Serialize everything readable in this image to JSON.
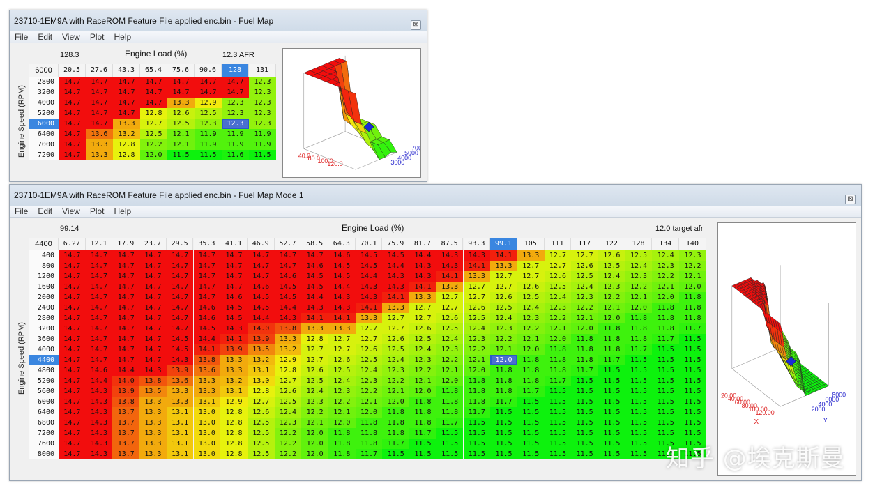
{
  "menu": [
    "File",
    "Edit",
    "View",
    "Plot",
    "Help"
  ],
  "win1": {
    "title": "23710-1EM9A with RaceROM Feature File applied enc.bin - Fuel Map",
    "close": "⊠",
    "load_readout": "128.3",
    "x_axis_title": "Engine Load (%)",
    "afr_readout": "12.3 AFR",
    "corner": "6000",
    "y_axis_title": "Engine Speed (RPM)",
    "cols": [
      "20.5",
      "27.6",
      "43.3",
      "65.4",
      "75.6",
      "90.6",
      "128",
      "131"
    ],
    "rows": [
      "2800",
      "3200",
      "4000",
      "5200",
      "6000",
      "6400",
      "7000",
      "7200"
    ],
    "sel_col": 6,
    "sel_row": 4,
    "values": [
      [
        "14.7",
        "14.7",
        "14.7",
        "14.7",
        "14.7",
        "14.7",
        "14.7",
        "12.3"
      ],
      [
        "14.7",
        "14.7",
        "14.7",
        "14.7",
        "14.7",
        "14.7",
        "14.7",
        "12.3"
      ],
      [
        "14.7",
        "14.7",
        "14.7",
        "14.7",
        "13.3",
        "12.9",
        "12.3",
        "12.3"
      ],
      [
        "14.7",
        "14.7",
        "14.7",
        "12.8",
        "12.6",
        "12.5",
        "12.3",
        "12.3"
      ],
      [
        "14.7",
        "14.7",
        "13.3",
        "12.7",
        "12.5",
        "12.3",
        "12.3",
        "12.3"
      ],
      [
        "14.7",
        "13.6",
        "13.2",
        "12.5",
        "12.1",
        "11.9",
        "11.9",
        "11.9"
      ],
      [
        "14.7",
        "13.3",
        "12.8",
        "12.2",
        "12.1",
        "11.9",
        "11.9",
        "11.9"
      ],
      [
        "14.7",
        "13.3",
        "12.8",
        "12.0",
        "11.5",
        "11.5",
        "11.6",
        "11.5"
      ]
    ],
    "plot": {
      "x_ticks": [
        "40.0",
        "80.0",
        "100.0",
        "120.0"
      ],
      "y_ticks": [
        "3000",
        "4000",
        "5000",
        "7000"
      ]
    }
  },
  "win2": {
    "title": "23710-1EM9A with RaceROM Feature File applied enc.bin - Fuel Map Mode 1",
    "close": "⊠",
    "load_readout": "99.14",
    "x_axis_title": "Engine Load (%)",
    "afr_readout": "12.0 target afr",
    "corner": "4400",
    "y_axis_title": "Engine Speed (RPM)",
    "cols": [
      "6.27",
      "12.1",
      "17.9",
      "23.7",
      "29.5",
      "35.3",
      "41.1",
      "46.9",
      "52.7",
      "58.5",
      "64.3",
      "70.1",
      "75.9",
      "81.7",
      "87.5",
      "93.3",
      "99.1",
      "105",
      "111",
      "117",
      "122",
      "128",
      "134",
      "140"
    ],
    "rows": [
      "400",
      "800",
      "1200",
      "1600",
      "2000",
      "2400",
      "2800",
      "3200",
      "3600",
      "4000",
      "4400",
      "4800",
      "5200",
      "5600",
      "6000",
      "6400",
      "6800",
      "7200",
      "7600",
      "8000"
    ],
    "sel_col": 16,
    "sel_row": 10,
    "values": [
      [
        "14.7",
        "14.7",
        "14.7",
        "14.7",
        "14.7",
        "14.7",
        "14.7",
        "14.7",
        "14.7",
        "14.7",
        "14.6",
        "14.5",
        "14.5",
        "14.4",
        "14.3",
        "14.3",
        "14.1",
        "13.3",
        "12.7",
        "12.7",
        "12.6",
        "12.5",
        "12.4",
        "12.3"
      ],
      [
        "14.7",
        "14.7",
        "14.7",
        "14.7",
        "14.7",
        "14.7",
        "14.7",
        "14.7",
        "14.7",
        "14.6",
        "14.5",
        "14.5",
        "14.4",
        "14.3",
        "14.3",
        "14.1",
        "13.3",
        "12.7",
        "12.7",
        "12.6",
        "12.5",
        "12.4",
        "12.3",
        "12.2"
      ],
      [
        "14.7",
        "14.7",
        "14.7",
        "14.7",
        "14.7",
        "14.7",
        "14.7",
        "14.7",
        "14.6",
        "14.5",
        "14.5",
        "14.4",
        "14.3",
        "14.3",
        "14.1",
        "13.3",
        "12.7",
        "12.7",
        "12.6",
        "12.5",
        "12.4",
        "12.3",
        "12.2",
        "12.1"
      ],
      [
        "14.7",
        "14.7",
        "14.7",
        "14.7",
        "14.7",
        "14.7",
        "14.7",
        "14.6",
        "14.5",
        "14.5",
        "14.4",
        "14.3",
        "14.3",
        "14.1",
        "13.3",
        "12.7",
        "12.7",
        "12.6",
        "12.5",
        "12.4",
        "12.3",
        "12.2",
        "12.1",
        "12.0"
      ],
      [
        "14.7",
        "14.7",
        "14.7",
        "14.7",
        "14.7",
        "14.7",
        "14.6",
        "14.5",
        "14.5",
        "14.4",
        "14.3",
        "14.3",
        "14.1",
        "13.3",
        "12.7",
        "12.7",
        "12.6",
        "12.5",
        "12.4",
        "12.3",
        "12.2",
        "12.1",
        "12.0",
        "11.8"
      ],
      [
        "14.7",
        "14.7",
        "14.7",
        "14.7",
        "14.7",
        "14.6",
        "14.5",
        "14.5",
        "14.4",
        "14.3",
        "14.3",
        "14.1",
        "13.3",
        "12.7",
        "12.7",
        "12.6",
        "12.5",
        "12.4",
        "12.3",
        "12.2",
        "12.1",
        "12.0",
        "11.8",
        "11.8"
      ],
      [
        "14.7",
        "14.7",
        "14.7",
        "14.7",
        "14.7",
        "14.6",
        "14.5",
        "14.4",
        "14.3",
        "14.1",
        "14.1",
        "13.3",
        "12.7",
        "12.7",
        "12.6",
        "12.5",
        "12.4",
        "12.3",
        "12.2",
        "12.1",
        "12.0",
        "11.8",
        "11.8",
        "11.8"
      ],
      [
        "14.7",
        "14.7",
        "14.7",
        "14.7",
        "14.7",
        "14.5",
        "14.3",
        "14.0",
        "13.8",
        "13.3",
        "13.3",
        "12.7",
        "12.7",
        "12.6",
        "12.5",
        "12.4",
        "12.3",
        "12.2",
        "12.1",
        "12.0",
        "11.8",
        "11.8",
        "11.8",
        "11.7"
      ],
      [
        "14.7",
        "14.7",
        "14.7",
        "14.7",
        "14.5",
        "14.4",
        "14.1",
        "13.9",
        "13.3",
        "12.8",
        "12.7",
        "12.7",
        "12.6",
        "12.5",
        "12.4",
        "12.3",
        "12.2",
        "12.1",
        "12.0",
        "11.8",
        "11.8",
        "11.8",
        "11.7",
        "11.5"
      ],
      [
        "14.7",
        "14.7",
        "14.7",
        "14.7",
        "14.5",
        "14.1",
        "13.9",
        "13.5",
        "13.2",
        "12.7",
        "12.7",
        "12.6",
        "12.5",
        "12.4",
        "12.3",
        "12.2",
        "12.1",
        "12.0",
        "11.8",
        "11.8",
        "11.8",
        "11.7",
        "11.5",
        "11.5"
      ],
      [
        "14.7",
        "14.7",
        "14.7",
        "14.7",
        "14.3",
        "13.8",
        "13.3",
        "13.2",
        "12.9",
        "12.7",
        "12.6",
        "12.5",
        "12.4",
        "12.3",
        "12.2",
        "12.1",
        "12.0",
        "11.8",
        "11.8",
        "11.8",
        "11.7",
        "11.5",
        "11.5",
        "11.5"
      ],
      [
        "14.7",
        "14.6",
        "14.4",
        "14.3",
        "13.9",
        "13.6",
        "13.3",
        "13.1",
        "12.8",
        "12.6",
        "12.5",
        "12.4",
        "12.3",
        "12.2",
        "12.1",
        "12.0",
        "11.8",
        "11.8",
        "11.8",
        "11.7",
        "11.5",
        "11.5",
        "11.5",
        "11.5"
      ],
      [
        "14.7",
        "14.4",
        "14.0",
        "13.8",
        "13.6",
        "13.3",
        "13.2",
        "13.0",
        "12.7",
        "12.5",
        "12.4",
        "12.3",
        "12.2",
        "12.1",
        "12.0",
        "11.8",
        "11.8",
        "11.8",
        "11.7",
        "11.5",
        "11.5",
        "11.5",
        "11.5",
        "11.5"
      ],
      [
        "14.7",
        "14.3",
        "13.9",
        "13.5",
        "13.3",
        "13.3",
        "13.1",
        "12.8",
        "12.6",
        "12.4",
        "12.3",
        "12.2",
        "12.1",
        "12.0",
        "11.8",
        "11.8",
        "11.8",
        "11.7",
        "11.5",
        "11.5",
        "11.5",
        "11.5",
        "11.5",
        "11.5"
      ],
      [
        "14.7",
        "14.3",
        "13.8",
        "13.3",
        "13.3",
        "13.1",
        "12.9",
        "12.7",
        "12.5",
        "12.3",
        "12.2",
        "12.1",
        "12.0",
        "11.8",
        "11.8",
        "11.8",
        "11.7",
        "11.5",
        "11.5",
        "11.5",
        "11.5",
        "11.5",
        "11.5",
        "11.5"
      ],
      [
        "14.7",
        "14.3",
        "13.7",
        "13.3",
        "13.1",
        "13.0",
        "12.8",
        "12.6",
        "12.4",
        "12.2",
        "12.1",
        "12.0",
        "11.8",
        "11.8",
        "11.8",
        "11.7",
        "11.5",
        "11.5",
        "11.5",
        "11.5",
        "11.5",
        "11.5",
        "11.5",
        "11.5"
      ],
      [
        "14.7",
        "14.3",
        "13.7",
        "13.3",
        "13.1",
        "13.0",
        "12.8",
        "12.5",
        "12.3",
        "12.1",
        "12.0",
        "11.8",
        "11.8",
        "11.8",
        "11.7",
        "11.5",
        "11.5",
        "11.5",
        "11.5",
        "11.5",
        "11.5",
        "11.5",
        "11.5",
        "11.5"
      ],
      [
        "14.7",
        "14.3",
        "13.7",
        "13.3",
        "13.1",
        "13.0",
        "12.8",
        "12.5",
        "12.2",
        "12.0",
        "11.8",
        "11.8",
        "11.8",
        "11.7",
        "11.5",
        "11.5",
        "11.5",
        "11.5",
        "11.5",
        "11.5",
        "11.5",
        "11.5",
        "11.5",
        "11.5"
      ],
      [
        "14.7",
        "14.3",
        "13.7",
        "13.3",
        "13.1",
        "13.0",
        "12.8",
        "12.5",
        "12.2",
        "12.0",
        "11.8",
        "11.8",
        "11.7",
        "11.5",
        "11.5",
        "11.5",
        "11.5",
        "11.5",
        "11.5",
        "11.5",
        "11.5",
        "11.5",
        "11.5",
        "11.5"
      ],
      [
        "14.7",
        "14.3",
        "13.7",
        "13.3",
        "13.1",
        "13.0",
        "12.8",
        "12.5",
        "12.2",
        "12.0",
        "11.8",
        "11.7",
        "11.5",
        "11.5",
        "11.5",
        "11.5",
        "11.5",
        "11.5",
        "11.5",
        "11.5",
        "11.5",
        "11.5",
        "11.5",
        "11.5"
      ]
    ],
    "plot": {
      "x_ticks": [
        "20.00",
        "40.00",
        "60.00",
        "80.00",
        "100.00",
        "120.00"
      ],
      "y_ticks": [
        "2000",
        "4000",
        "6000",
        "8000"
      ],
      "x_label": "X",
      "y_label": "Y"
    }
  },
  "watermark": "知乎 @埃克斯曼"
}
